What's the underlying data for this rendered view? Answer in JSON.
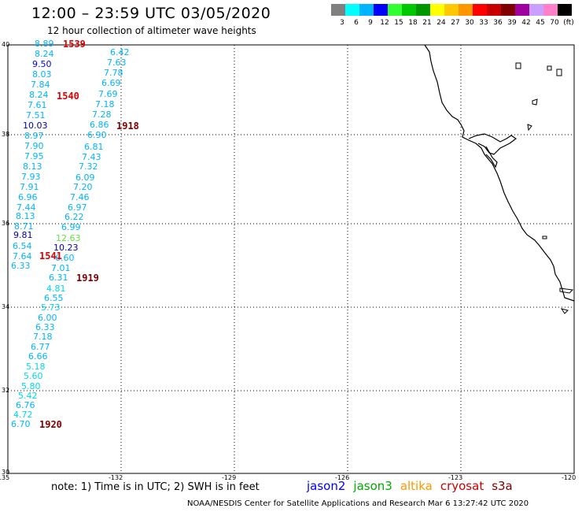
{
  "title": "12:00 – 23:59 UTC 03/05/2020",
  "subtitle": "12 hour collection of altimeter wave heights",
  "colorbar": {
    "colors": [
      "#808080",
      "#00ffff",
      "#00b4ff",
      "#0000ff",
      "#32ff32",
      "#00c800",
      "#009600",
      "#ffff00",
      "#ffc800",
      "#ff9600",
      "#ff0000",
      "#c80000",
      "#800000",
      "#a000a0",
      "#c8a0ff",
      "#ff80c8",
      "#000000"
    ],
    "labels": [
      "3",
      "6",
      "9",
      "12",
      "15",
      "18",
      "21",
      "24",
      "27",
      "30",
      "33",
      "36",
      "39",
      "42",
      "45",
      "70",
      "(ft)"
    ]
  },
  "axis": {
    "lon_ticks": [
      "-135",
      "-132",
      "-129",
      "-126",
      "-123",
      "-120"
    ],
    "lat_ticks": [
      "40",
      "38",
      "36",
      "34",
      "32",
      "30"
    ]
  },
  "satellite_colors": {
    "jason2": "#0000ff",
    "jason3": "#00aa00",
    "altika": "#ff9900",
    "cryosat": "#cc0000",
    "s3a": "#800000"
  },
  "passes": [
    {
      "time": "1539",
      "color": "#dd0000"
    },
    {
      "time": "1540",
      "color": "#dd0000"
    },
    {
      "time": "1918",
      "color": "#800000"
    },
    {
      "time": "1541",
      "color": "#dd0000"
    },
    {
      "time": "1919",
      "color": "#800000"
    },
    {
      "time": "1920",
      "color": "#800000"
    }
  ],
  "wave_points": [
    {
      "v": "8.89",
      "c": "#00b4ff"
    },
    {
      "v": "8.24",
      "c": "#00b4ff"
    },
    {
      "v": "9.50",
      "c": "#0000ff"
    },
    {
      "v": "8.03",
      "c": "#00b4ff"
    },
    {
      "v": "7.84",
      "c": "#00b4ff"
    },
    {
      "v": "8.24",
      "c": "#00b4ff"
    },
    {
      "v": "7.61",
      "c": "#00b4ff"
    },
    {
      "v": "7.51",
      "c": "#00b4ff"
    },
    {
      "v": "10.03",
      "c": "#0000aa"
    },
    {
      "v": "8.97",
      "c": "#00b4ff"
    },
    {
      "v": "7.90",
      "c": "#00b4ff"
    },
    {
      "v": "7.95",
      "c": "#00b4ff"
    },
    {
      "v": "8.13",
      "c": "#00b4ff"
    },
    {
      "v": "7.93",
      "c": "#00b4ff"
    },
    {
      "v": "7.91",
      "c": "#00b4ff"
    },
    {
      "v": "6.96",
      "c": "#00b4ff"
    },
    {
      "v": "7.44",
      "c": "#00b4ff"
    },
    {
      "v": "8.13",
      "c": "#00b4ff"
    },
    {
      "v": "8.71",
      "c": "#00b4ff"
    },
    {
      "v": "9.81",
      "c": "#0000aa"
    },
    {
      "v": "6.54",
      "c": "#00b4ff"
    },
    {
      "v": "7.64",
      "c": "#00b4ff"
    },
    {
      "v": "6.33",
      "c": "#00b4ff"
    },
    {
      "v": "6.42",
      "c": "#00b4ff"
    },
    {
      "v": "7.63",
      "c": "#00b4ff"
    },
    {
      "v": "7.78",
      "c": "#00b4ff"
    },
    {
      "v": "6.69",
      "c": "#00b4ff"
    },
    {
      "v": "7.69",
      "c": "#00b4ff"
    },
    {
      "v": "7.18",
      "c": "#00b4ff"
    },
    {
      "v": "7.28",
      "c": "#00b4ff"
    },
    {
      "v": "6.86",
      "c": "#00b4ff"
    },
    {
      "v": "6.90",
      "c": "#00b4ff"
    },
    {
      "v": "6.81",
      "c": "#00b4ff"
    },
    {
      "v": "7.43",
      "c": "#00b4ff"
    },
    {
      "v": "7.32",
      "c": "#00b4ff"
    },
    {
      "v": "6.09",
      "c": "#00b4ff"
    },
    {
      "v": "7.20",
      "c": "#00b4ff"
    },
    {
      "v": "7.46",
      "c": "#00b4ff"
    },
    {
      "v": "6.97",
      "c": "#00b4ff"
    },
    {
      "v": "6.22",
      "c": "#00b4ff"
    },
    {
      "v": "6.99",
      "c": "#00b4ff"
    },
    {
      "v": "12.63",
      "c": "#66dd44"
    },
    {
      "v": "10.23",
      "c": "#0000aa"
    },
    {
      "v": "6.60",
      "c": "#00b4ff"
    },
    {
      "v": "7.01",
      "c": "#00b4ff"
    },
    {
      "v": "6.31",
      "c": "#00b4ff"
    },
    {
      "v": "4.81",
      "c": "#00d8e8"
    },
    {
      "v": "6.55",
      "c": "#00b4ff"
    },
    {
      "v": "5.73",
      "c": "#00d8e8"
    },
    {
      "v": "6.00",
      "c": "#00b4ff"
    },
    {
      "v": "6.33",
      "c": "#00b4ff"
    },
    {
      "v": "7.18",
      "c": "#00b4ff"
    },
    {
      "v": "6.77",
      "c": "#00b4ff"
    },
    {
      "v": "6.66",
      "c": "#00b4ff"
    },
    {
      "v": "5.18",
      "c": "#00d8e8"
    },
    {
      "v": "5.60",
      "c": "#00d8e8"
    },
    {
      "v": "5.80",
      "c": "#00d8e8"
    },
    {
      "v": "5.42",
      "c": "#00d8e8"
    },
    {
      "v": "6.76",
      "c": "#00b4ff"
    },
    {
      "v": "4.72",
      "c": "#00d8e8"
    },
    {
      "v": "6.70",
      "c": "#00b4ff"
    }
  ],
  "note": "note:  1) Time is in UTC;  2) SWH is in feet",
  "legend": [
    {
      "label": "jason2",
      "color": "#0000ff"
    },
    {
      "label": "jason3",
      "color": "#00aa00"
    },
    {
      "label": "altika",
      "color": "#ff9900"
    },
    {
      "label": "cryosat",
      "color": "#cc0000"
    },
    {
      "label": "s3a",
      "color": "#800000"
    }
  ],
  "credit": "NOAA/NESDIS Center for Satellite Applications and Research     Mar  6 13:27:42 UTC 2020"
}
